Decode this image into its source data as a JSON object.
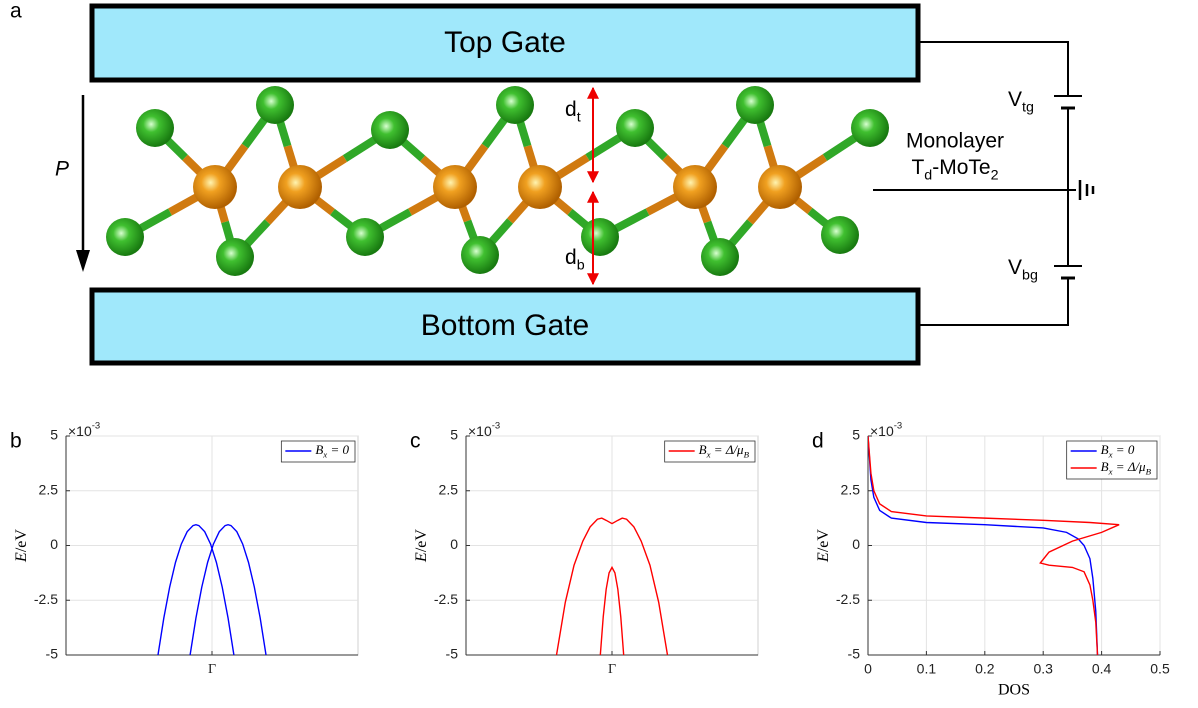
{
  "diagram": {
    "panel_label": "a",
    "top_gate": "Top Gate",
    "bottom_gate": "Bottom Gate",
    "polarization": "P",
    "d_top": [
      "d",
      "t"
    ],
    "d_bottom": [
      "d",
      "b"
    ],
    "v_top": [
      "V",
      "tg"
    ],
    "v_bottom": [
      "V",
      "bg"
    ],
    "layer_line1": "Monolayer",
    "layer_line2": [
      "T",
      "d",
      "-MoTe",
      "2"
    ]
  },
  "chart_data": [
    {
      "type": "line",
      "panel_label": "b",
      "y_label": [
        "E",
        "/eV"
      ],
      "y_exponent": [
        "×10",
        "-3"
      ],
      "xlim": [
        -1,
        1
      ],
      "xticks": [
        {
          "value": 0,
          "label": "Γ"
        }
      ],
      "ylim": [
        -5,
        5
      ],
      "yticks": [
        -5,
        -2.5,
        0,
        2.5,
        5
      ],
      "grid": true,
      "legend": "upper right",
      "series": [
        {
          "name": [
            "B",
            "x",
            " = 0"
          ],
          "color": "#0000ff",
          "x": [
            -0.37,
            -0.33,
            -0.29,
            -0.25,
            -0.21,
            -0.17,
            -0.13,
            -0.11,
            -0.09,
            -0.05,
            -0.01,
            0.03,
            0.07,
            0.11,
            0.15
          ],
          "values": [
            -5.0,
            -3.31,
            -1.9,
            -0.77,
            0.07,
            0.63,
            0.91,
            0.95,
            0.91,
            0.63,
            0.07,
            -0.77,
            -1.9,
            -3.31,
            -5.0
          ]
        },
        {
          "color": "#0000ff",
          "x": [
            -0.15,
            -0.11,
            -0.07,
            -0.03,
            0.01,
            0.05,
            0.09,
            0.11,
            0.13,
            0.17,
            0.21,
            0.25,
            0.29,
            0.33,
            0.37
          ],
          "values": [
            -5.0,
            -3.31,
            -1.9,
            -0.77,
            0.07,
            0.63,
            0.91,
            0.95,
            0.91,
            0.63,
            0.07,
            -0.77,
            -1.9,
            -3.31,
            -5.0
          ]
        }
      ]
    },
    {
      "type": "line",
      "panel_label": "c",
      "y_label": [
        "E",
        "/eV"
      ],
      "y_exponent": [
        "×10",
        "-3"
      ],
      "xlim": [
        -1,
        1
      ],
      "xticks": [
        {
          "value": 0,
          "label": "Γ"
        }
      ],
      "ylim": [
        -5,
        5
      ],
      "yticks": [
        -5,
        -2.5,
        0,
        2.5,
        5
      ],
      "grid": true,
      "legend": "upper right",
      "series": [
        {
          "name": [
            "B",
            "x",
            " = Δ/μ",
            "B"
          ],
          "color": "#ff0000",
          "x": [
            -0.38,
            -0.32,
            -0.26,
            -0.2,
            -0.15,
            -0.1,
            -0.07,
            -0.04,
            0,
            0.04,
            0.07,
            0.1,
            0.15,
            0.2,
            0.26,
            0.32,
            0.38
          ],
          "values": [
            -5,
            -2.6,
            -0.9,
            0.2,
            0.85,
            1.2,
            1.25,
            1.15,
            1.0,
            1.15,
            1.25,
            1.2,
            0.85,
            0.2,
            -0.9,
            -2.6,
            -5
          ]
        },
        {
          "color": "#ff0000",
          "x": [
            -0.08,
            -0.06,
            -0.04,
            -0.02,
            0,
            0.02,
            0.04,
            0.06,
            0.08
          ],
          "values": [
            -5,
            -3.25,
            -2.0,
            -1.25,
            -1.0,
            -1.25,
            -2.0,
            -3.25,
            -5
          ]
        }
      ]
    },
    {
      "type": "line",
      "panel_label": "d",
      "y_label": [
        "E",
        "/eV"
      ],
      "y_exponent": [
        "×10",
        "-3"
      ],
      "x_label": "DOS",
      "xlim": [
        0,
        0.5
      ],
      "xticks": [
        0,
        0.1,
        0.2,
        0.3,
        0.4,
        0.5
      ],
      "ylim": [
        -5,
        5
      ],
      "yticks": [
        -5,
        -2.5,
        0,
        2.5,
        5
      ],
      "grid": true,
      "legend": "upper right",
      "series": [
        {
          "name": [
            "B",
            "x",
            " = 0"
          ],
          "color": "#0000ff",
          "x": [
            0,
            0.005,
            0.01,
            0.02,
            0.04,
            0.1,
            0.2,
            0.3,
            0.34,
            0.36,
            0.37,
            0.38,
            0.385,
            0.39,
            0.393
          ],
          "values": [
            5,
            3,
            2.2,
            1.6,
            1.25,
            1.05,
            0.95,
            0.8,
            0.6,
            0.3,
            0,
            -0.6,
            -1.5,
            -3,
            -5
          ]
        },
        {
          "name": [
            "B",
            "x",
            " = Δ/μ",
            "B"
          ],
          "color": "#ff0000",
          "x": [
            0,
            0.005,
            0.01,
            0.02,
            0.04,
            0.1,
            0.2,
            0.3,
            0.38,
            0.43,
            0.4,
            0.35,
            0.31,
            0.295,
            0.31,
            0.35,
            0.37,
            0.38,
            0.385,
            0.39,
            0.393
          ],
          "values": [
            5,
            3.3,
            2.5,
            1.9,
            1.55,
            1.35,
            1.25,
            1.15,
            1.05,
            0.95,
            0.6,
            0.2,
            -0.3,
            -0.8,
            -0.9,
            -1.0,
            -1.2,
            -1.8,
            -2.5,
            -3.5,
            -5
          ]
        }
      ]
    }
  ]
}
